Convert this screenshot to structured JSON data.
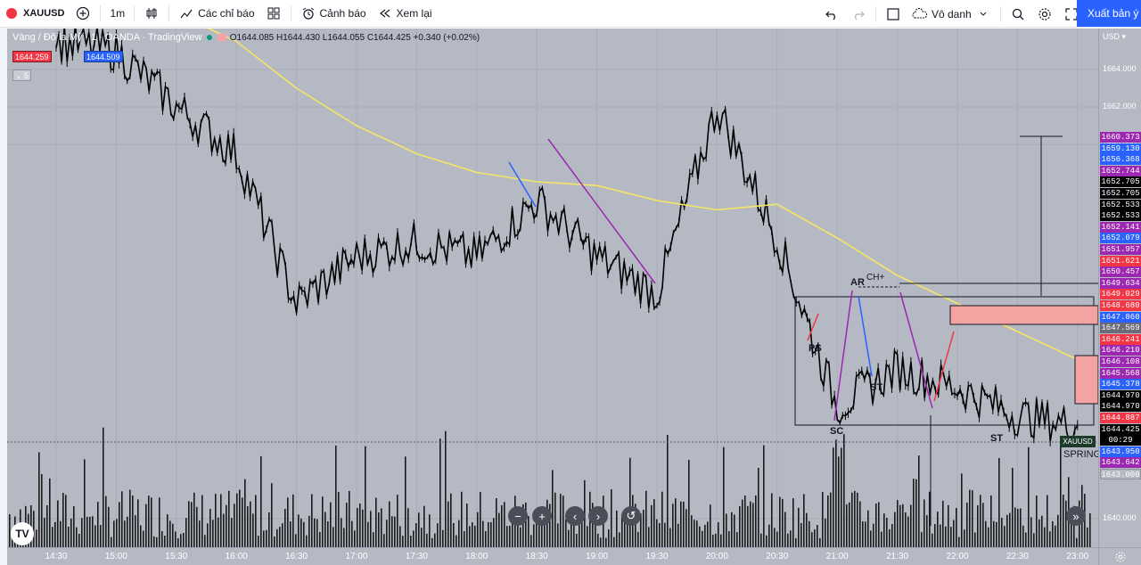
{
  "toolbar": {
    "symbol": "XAUUSD",
    "interval": "1m",
    "indicators": "Các chỉ báo",
    "alert": "Cảnh báo",
    "replay": "Xem lại",
    "layout_name": "Vô danh",
    "publish": "Xuất bản ý t"
  },
  "legend": {
    "title": "Vàng / Đô la Mỹ · 1 · OANDA · TradingView",
    "o_label": "O",
    "o": "1644.085",
    "h_label": "H",
    "h": "1644.430",
    "l_label": "L",
    "l": "1644.055",
    "c_label": "C",
    "c": "1644.425",
    "change": "+0.340 (+0.02%)",
    "bid": "1644.259",
    "ask": "1644.509",
    "indicator_count": "5"
  },
  "price_axis": {
    "currency": "USD",
    "ticks": [
      "1664.000",
      "1662.000",
      "1660.000",
      "1640.000"
    ],
    "labels": [
      {
        "v": "1660.373",
        "c": "#9c27b0"
      },
      {
        "v": "1659.130",
        "c": "#2962ff"
      },
      {
        "v": "1656.368",
        "c": "#2962ff"
      },
      {
        "v": "1652.744",
        "c": "#9c27b0"
      },
      {
        "v": "1652.705",
        "c": "#000000"
      },
      {
        "v": "1652.705",
        "c": "#000000"
      },
      {
        "v": "1652.533",
        "c": "#000000"
      },
      {
        "v": "1652.533",
        "c": "#000000"
      },
      {
        "v": "1652.141",
        "c": "#9c27b0"
      },
      {
        "v": "1652.079",
        "c": "#2962ff"
      },
      {
        "v": "1651.957",
        "c": "#9c27b0"
      },
      {
        "v": "1651.621",
        "c": "#f23645"
      },
      {
        "v": "1650.457",
        "c": "#9c27b0"
      },
      {
        "v": "1649.634",
        "c": "#9c27b0"
      },
      {
        "v": "1649.029",
        "c": "#f23645"
      },
      {
        "v": "1648.680",
        "c": "#f23645"
      },
      {
        "v": "1647.860",
        "c": "#2962ff"
      },
      {
        "v": "1647.569",
        "c": "#6a6d78"
      },
      {
        "v": "1646.241",
        "c": "#f23645"
      },
      {
        "v": "1646.210",
        "c": "#9c27b0"
      },
      {
        "v": "1646.108",
        "c": "#9c27b0"
      },
      {
        "v": "1645.568",
        "c": "#9c27b0"
      },
      {
        "v": "1645.378",
        "c": "#2962ff"
      },
      {
        "v": "1644.970",
        "c": "#000000"
      },
      {
        "v": "1644.970",
        "c": "#000000"
      },
      {
        "v": "1644.887",
        "c": "#f23645"
      },
      {
        "v": "1644.425",
        "c": "#000000"
      },
      {
        "v": "00:29",
        "c": "#000000"
      },
      {
        "v": "1643.950",
        "c": "#2962ff"
      },
      {
        "v": "1643.642",
        "c": "#9c27b0"
      },
      {
        "v": "1643.000",
        "c": "#b5b9c4"
      }
    ],
    "current_symbol": "XAUUSD"
  },
  "time_axis": {
    "ticks": [
      "14:30",
      "15:00",
      "15:30",
      "16:00",
      "16:30",
      "17:00",
      "17:30",
      "18:00",
      "18:30",
      "19:00",
      "19:30",
      "20:00",
      "20:30",
      "21:00",
      "21:30",
      "22:00",
      "22:30",
      "23:00"
    ]
  },
  "annotations": {
    "ps": "PS",
    "sc": "SC",
    "ar": "AR",
    "ch": "CH+",
    "st1": "ST",
    "st2": "ST",
    "spring": "SPRING"
  },
  "colors": {
    "chart_bg": "#b5b9c4",
    "candle": "#000000",
    "ma": "#f5e663",
    "supply_zone": "#f4a3a3",
    "accent": "#2962ff"
  },
  "chart_data": {
    "type": "line",
    "series": [
      {
        "x": [
          "14:30",
          "15:00",
          "15:30",
          "16:00",
          "16:30",
          "17:00",
          "17:30",
          "18:00",
          "18:30",
          "19:00",
          "19:30",
          "20:00",
          "20:30",
          "21:00",
          "21:30",
          "22:00",
          "22:30",
          "23:00"
        ],
        "values": [
          1665.5,
          1665.0,
          1662.0,
          1659.5,
          1651.5,
          1654.0,
          1654.8,
          1654.0,
          1657.0,
          1654.0,
          1652.0,
          1662.0,
          1655.0,
          1646.0,
          1648.0,
          1647.0,
          1645.5,
          1645.0
        ]
      },
      {
        "x": [
          "14:30",
          "15:00",
          "15:30",
          "16:00",
          "16:30",
          "17:00",
          "17:30",
          "18:00",
          "18:30",
          "19:00",
          "19:30",
          "20:00",
          "20:30",
          "21:00",
          "21:30",
          "22:00",
          "22:30",
          "23:00"
        ],
        "values": [
          1668.0,
          1667.5,
          1667.0,
          1665.5,
          1663.0,
          1661.0,
          1659.5,
          1658.5,
          1658.0,
          1657.8,
          1657.0,
          1656.5,
          1656.8,
          1655.0,
          1653.0,
          1651.5,
          1650.0,
          1648.5
        ]
      }
    ]
  }
}
